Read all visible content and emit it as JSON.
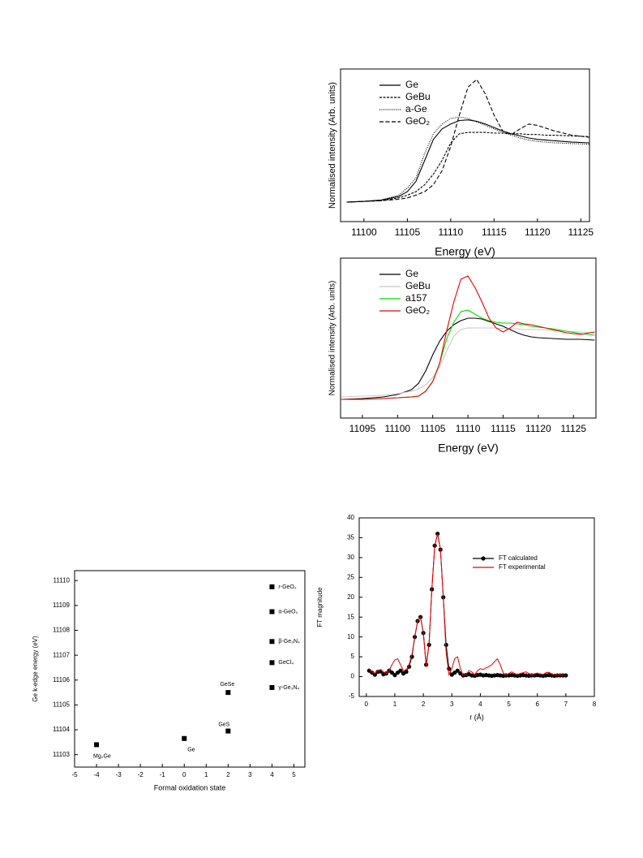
{
  "chart_data": [
    {
      "type": "line",
      "x_label": "Energy (eV)",
      "y_label": "Normalised intensity (Arb. units)",
      "x": [
        11098,
        11100,
        11102,
        11104,
        11105,
        11106,
        11107,
        11108,
        11109,
        11110,
        11111,
        11112,
        11113,
        11114,
        11115,
        11116,
        11117,
        11118,
        11119,
        11120,
        11121,
        11122,
        11124,
        11126
      ],
      "series": [
        {
          "name": "Ge",
          "color": "#000000",
          "dash": "solid",
          "values": [
            0,
            0.01,
            0.03,
            0.08,
            0.15,
            0.3,
            0.6,
            0.9,
            1.05,
            1.12,
            1.17,
            1.18,
            1.16,
            1.12,
            1.07,
            1.02,
            0.98,
            0.95,
            0.92,
            0.9,
            0.89,
            0.88,
            0.86,
            0.85
          ]
        },
        {
          "name": "GeBu",
          "color": "#000000",
          "dash": "dashdot",
          "values": [
            0,
            0.01,
            0.02,
            0.06,
            0.1,
            0.15,
            0.25,
            0.4,
            0.6,
            0.85,
            0.98,
            1.0,
            1.0,
            1.0,
            0.99,
            0.99,
            0.98,
            0.98,
            0.97,
            0.97,
            0.96,
            0.96,
            0.95,
            0.94
          ]
        },
        {
          "name": "a-Ge",
          "color": "#000000",
          "dash": "dotted",
          "values": [
            0,
            0.01,
            0.03,
            0.1,
            0.2,
            0.35,
            0.7,
            0.98,
            1.12,
            1.2,
            1.22,
            1.2,
            1.15,
            1.1,
            1.05,
            1.0,
            0.96,
            0.92,
            0.89,
            0.87,
            0.86,
            0.85,
            0.84,
            0.83
          ]
        },
        {
          "name": "GeO₂",
          "color": "#000000",
          "dash": "dashed",
          "values": [
            0,
            0.01,
            0.02,
            0.04,
            0.06,
            0.1,
            0.15,
            0.25,
            0.45,
            0.8,
            1.25,
            1.65,
            1.76,
            1.55,
            1.25,
            1.02,
            0.97,
            1.05,
            1.12,
            1.1,
            1.06,
            1.02,
            0.96,
            0.93
          ]
        }
      ],
      "xlim": [
        11097.3,
        11126
      ],
      "xticks": [
        11100,
        11105,
        11110,
        11115,
        11120,
        11125
      ],
      "ylim": [
        -0.28,
        1.91
      ],
      "legend": "upper left"
    },
    {
      "type": "line",
      "x_label": "Energy (eV)",
      "y_label": "Normalised intensity (Arb. units)",
      "x": [
        11092,
        11095,
        11098,
        11100,
        11102,
        11103,
        11104,
        11105,
        11106,
        11107,
        11108,
        11109,
        11110,
        11111,
        11112,
        11113,
        11114,
        11115,
        11116,
        11117,
        11118,
        11119,
        11120,
        11122,
        11124,
        11126,
        11128
      ],
      "series": [
        {
          "name": "Ge",
          "color": "#000000",
          "dash": "solid",
          "values": [
            0,
            0.01,
            0.03,
            0.06,
            0.12,
            0.2,
            0.35,
            0.55,
            0.72,
            0.84,
            0.92,
            0.97,
            1.0,
            1.0,
            0.99,
            0.96,
            0.93,
            0.9,
            0.86,
            0.82,
            0.79,
            0.77,
            0.76,
            0.75,
            0.74,
            0.74,
            0.73
          ]
        },
        {
          "name": "GeBu",
          "color": "#c8c8c8",
          "dash": "solid",
          "values": [
            0.03,
            0.04,
            0.05,
            0.07,
            0.1,
            0.13,
            0.18,
            0.27,
            0.4,
            0.6,
            0.78,
            0.86,
            0.88,
            0.88,
            0.88,
            0.88,
            0.88,
            0.87,
            0.87,
            0.87,
            0.86,
            0.86,
            0.86,
            0.85,
            0.84,
            0.83,
            0.82
          ]
        },
        {
          "name": "a157",
          "color": "#00dd00",
          "dash": "solid",
          "values": [
            0,
            0,
            0.01,
            0.02,
            0.03,
            0.04,
            0.1,
            0.22,
            0.45,
            0.75,
            0.95,
            1.08,
            1.1,
            1.05,
            1.0,
            0.97,
            0.95,
            0.94,
            0.94,
            0.93,
            0.92,
            0.9,
            0.89,
            0.87,
            0.84,
            0.81,
            0.79
          ]
        },
        {
          "name": "GeO₂",
          "color": "#ee0000",
          "dash": "solid",
          "values": [
            0,
            0,
            0.01,
            0.02,
            0.03,
            0.04,
            0.1,
            0.22,
            0.45,
            0.85,
            1.2,
            1.48,
            1.52,
            1.38,
            1.2,
            1.0,
            0.88,
            0.83,
            0.88,
            0.95,
            0.93,
            0.92,
            0.9,
            0.86,
            0.82,
            0.8,
            0.83
          ]
        }
      ],
      "xlim": [
        11091.9,
        11128.2
      ],
      "xticks": [
        11095,
        11100,
        11105,
        11110,
        11115,
        11120,
        11125
      ],
      "ylim": [
        -0.23,
        1.74
      ],
      "legend": "upper left"
    },
    {
      "type": "scatter",
      "x_label": "Formal oxidation state",
      "y_label": "Ge k-edge energy (eV)",
      "x": [
        -4,
        0,
        2,
        2,
        4,
        4,
        4,
        4,
        4
      ],
      "values": [
        11103.4,
        11103.65,
        11103.95,
        11105.5,
        11105.7,
        11106.7,
        11107.55,
        11108.75,
        11109.75
      ],
      "point_labels": [
        "Mg₂Ge",
        "Ge",
        "GeS",
        "GeSe",
        "γ-Ge₃N₄",
        "GeCl₄",
        "β-Ge₃N₄",
        "α-GeO₂",
        "r-GeO₂"
      ],
      "color": "#000000",
      "xlim": [
        -5,
        5.5
      ],
      "xticks": [
        -5,
        -4,
        -3,
        -2,
        -1,
        0,
        1,
        2,
        3,
        4,
        5
      ],
      "ylim": [
        11102.5,
        11110.4
      ],
      "yticks": [
        11103,
        11104,
        11105,
        11106,
        11107,
        11108,
        11109,
        11110
      ]
    },
    {
      "type": "line",
      "x_label": "r (Å)",
      "y_label": "FT magnitude",
      "x": [
        0.1,
        0.2,
        0.3,
        0.4,
        0.5,
        0.6,
        0.7,
        0.8,
        0.9,
        1.0,
        1.1,
        1.2,
        1.3,
        1.4,
        1.5,
        1.6,
        1.7,
        1.8,
        1.9,
        2.0,
        2.1,
        2.2,
        2.3,
        2.4,
        2.5,
        2.6,
        2.7,
        2.8,
        2.9,
        3.0,
        3.1,
        3.2,
        3.3,
        3.4,
        3.5,
        3.6,
        3.7,
        3.8,
        3.9,
        4.0,
        4.1,
        4.2,
        4.3,
        4.4,
        4.5,
        4.6,
        4.7,
        4.8,
        4.9,
        5.0,
        5.1,
        5.2,
        5.3,
        5.4,
        5.5,
        5.6,
        5.7,
        5.8,
        5.9,
        6.0,
        6.1,
        6.2,
        6.3,
        6.4,
        6.5,
        6.6,
        6.7,
        6.8,
        6.9,
        7.0
      ],
      "series": [
        {
          "name": "FT calculated",
          "color": "#000000",
          "dash": "solid",
          "marker": "circle",
          "values": [
            1.5,
            1.0,
            0.5,
            1.2,
            1.3,
            0.6,
            0.8,
            1.5,
            1.0,
            0.4,
            1.0,
            1.5,
            0.8,
            1.2,
            2.5,
            5,
            10,
            14,
            15,
            11,
            3,
            8,
            22,
            33,
            36,
            32,
            20,
            8,
            2,
            0.5,
            1.0,
            1.5,
            0.8,
            0.3,
            0.4,
            0.6,
            0.3,
            0.2,
            0.4,
            0.5,
            0.3,
            0.4,
            0.3,
            0.2,
            0.3,
            0.4,
            0.3,
            0.2,
            0.3,
            0.3,
            0.4,
            0.3,
            0.2,
            0.3,
            0.4,
            0.3,
            0.2,
            0.3,
            0.3,
            0.4,
            0.3,
            0.2,
            0.3,
            0.4,
            0.3,
            0.2,
            0.3,
            0.3,
            0.3,
            0.3
          ]
        },
        {
          "name": "FT experimental",
          "color": "#ee0000",
          "dash": "solid",
          "values": [
            2,
            1.2,
            0.8,
            1.5,
            1.8,
            1.2,
            0.8,
            1.5,
            3,
            4.2,
            4.5,
            3,
            1.5,
            1.8,
            3,
            5.5,
            10,
            14,
            15,
            11,
            2.5,
            8,
            22,
            33,
            36,
            32,
            20,
            6,
            0.5,
            2,
            4.5,
            5,
            2,
            0.3,
            0.5,
            1.5,
            1.2,
            0.5,
            1.5,
            2,
            1.8,
            2.2,
            2.5,
            3,
            3.8,
            4.5,
            3,
            1,
            0.3,
            0.8,
            1.2,
            0.8,
            0.5,
            0.8,
            1.0,
            1.2,
            0.8,
            0.4,
            0.7,
            0.9,
            0.6,
            0.5,
            1.0,
            1.1,
            0.7,
            0.4,
            0.5,
            0.6,
            0.3,
            0.3
          ]
        }
      ],
      "xlim": [
        -0.25,
        8
      ],
      "xticks": [
        0,
        1,
        2,
        3,
        4,
        5,
        6,
        7,
        8
      ],
      "ylim": [
        -5,
        40
      ],
      "yticks": [
        -5,
        0,
        5,
        10,
        15,
        20,
        25,
        30,
        35,
        40
      ],
      "legend": "upper right"
    }
  ]
}
